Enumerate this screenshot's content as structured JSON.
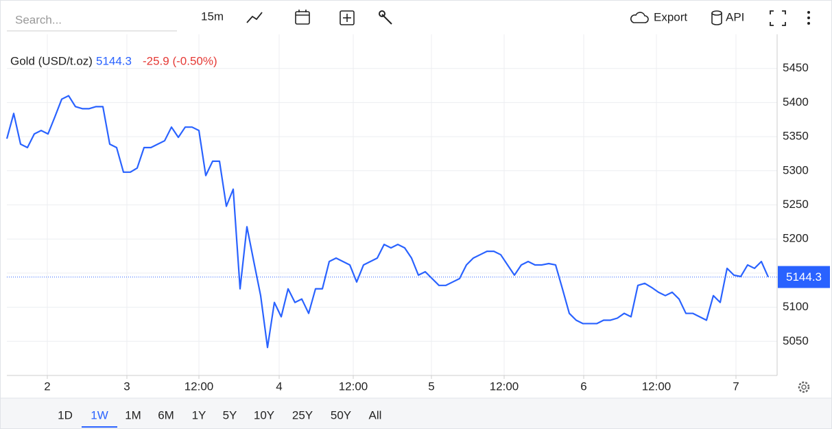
{
  "toolbar": {
    "search_placeholder": "Search...",
    "interval": "15m",
    "export": "Export",
    "api": "API"
  },
  "chart_data": {
    "type": "line",
    "title": "Gold (USD/t.oz)",
    "last_value": 5144.3,
    "change": "-25.9 (-0.50%)",
    "series": [
      {
        "name": "Gold (USD/t.oz)",
        "color": "#2962ff",
        "values": [
          5347,
          5384,
          5339,
          5334,
          5354,
          5359,
          5354,
          5379,
          5405,
          5410,
          5394,
          5391,
          5391,
          5394,
          5394,
          5339,
          5334,
          5298,
          5298,
          5304,
          5334,
          5334,
          5339,
          5344,
          5364,
          5349,
          5364,
          5364,
          5359,
          5293,
          5314,
          5314,
          5248,
          5273,
          5127,
          5218,
          5167,
          5117,
          5041,
          5107,
          5086,
          5127,
          5107,
          5112,
          5091,
          5127,
          5127,
          5167,
          5172,
          5167,
          5162,
          5137,
          5162,
          5167,
          5172,
          5192,
          5187,
          5192,
          5187,
          5172,
          5147,
          5152,
          5142,
          5132,
          5132,
          5137,
          5142,
          5162,
          5172,
          5177,
          5182,
          5182,
          5177,
          5162,
          5147,
          5162,
          5167,
          5162,
          5162,
          5164,
          5162,
          5127,
          5091,
          5081,
          5076,
          5076,
          5076,
          5081,
          5081,
          5084,
          5091,
          5086,
          5132,
          5135,
          5129,
          5122,
          5117,
          5122,
          5112,
          5091,
          5091,
          5086,
          5081,
          5117,
          5107,
          5157,
          5147,
          5145,
          5162,
          5157,
          5167,
          5144.3
        ]
      }
    ],
    "xlim": [
      0,
      112.3
    ],
    "xticks": [
      {
        "value": 5.9,
        "label": "2"
      },
      {
        "value": 17.5,
        "label": "3"
      },
      {
        "value": 28,
        "label": "12:00"
      },
      {
        "value": 39.7,
        "label": "4"
      },
      {
        "value": 50.5,
        "label": "12:00"
      },
      {
        "value": 61.9,
        "label": "5"
      },
      {
        "value": 72.5,
        "label": "12:00"
      },
      {
        "value": 84.1,
        "label": "6"
      },
      {
        "value": 94.7,
        "label": "12:00"
      },
      {
        "value": 106.3,
        "label": "7"
      }
    ],
    "ylim": [
      5000,
      5500
    ],
    "yticks": [
      5050,
      5100,
      5150,
      5200,
      5250,
      5300,
      5350,
      5400,
      5450
    ],
    "grid": true
  },
  "ranges": [
    "1D",
    "1W",
    "1M",
    "6M",
    "1Y",
    "5Y",
    "10Y",
    "25Y",
    "50Y",
    "All"
  ],
  "active_range": "1W"
}
